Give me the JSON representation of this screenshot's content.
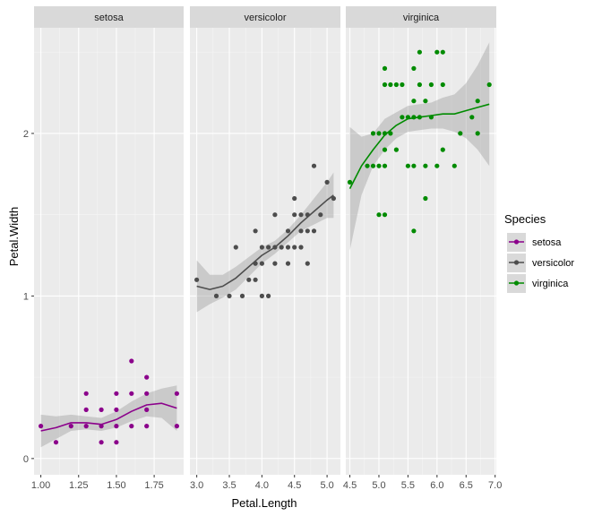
{
  "chart_data": {
    "type": "scatter",
    "facet_variable": "Species",
    "xlabel": "Petal.Length",
    "ylabel": "Petal.Width",
    "ylim": [
      -0.1,
      2.65
    ],
    "yticks": [
      0,
      1,
      2
    ],
    "legend": {
      "title": "Species",
      "placement": "right"
    },
    "grid": true,
    "panels": [
      {
        "name": "setosa",
        "color": "#8B008B",
        "xlim": [
          0.955,
          1.945
        ],
        "xticks": [
          1.0,
          1.25,
          1.5,
          1.75
        ],
        "xtick_labels": [
          "1.00",
          "1.25",
          "1.50",
          "1.75"
        ],
        "points": [
          [
            1.0,
            0.2
          ],
          [
            1.1,
            0.1
          ],
          [
            1.2,
            0.2
          ],
          [
            1.3,
            0.2
          ],
          [
            1.3,
            0.3
          ],
          [
            1.3,
            0.4
          ],
          [
            1.4,
            0.1
          ],
          [
            1.4,
            0.2
          ],
          [
            1.4,
            0.3
          ],
          [
            1.5,
            0.1
          ],
          [
            1.5,
            0.2
          ],
          [
            1.5,
            0.3
          ],
          [
            1.5,
            0.4
          ],
          [
            1.6,
            0.2
          ],
          [
            1.6,
            0.4
          ],
          [
            1.6,
            0.6
          ],
          [
            1.7,
            0.2
          ],
          [
            1.7,
            0.3
          ],
          [
            1.7,
            0.4
          ],
          [
            1.7,
            0.5
          ],
          [
            1.9,
            0.2
          ],
          [
            1.9,
            0.4
          ]
        ],
        "smooth": [
          [
            1.0,
            0.17
          ],
          [
            1.1,
            0.19
          ],
          [
            1.2,
            0.22
          ],
          [
            1.3,
            0.22
          ],
          [
            1.4,
            0.21
          ],
          [
            1.5,
            0.24
          ],
          [
            1.6,
            0.29
          ],
          [
            1.7,
            0.33
          ],
          [
            1.8,
            0.34
          ],
          [
            1.9,
            0.31
          ]
        ],
        "band": [
          [
            1.0,
            0.07,
            0.27
          ],
          [
            1.1,
            0.12,
            0.26
          ],
          [
            1.2,
            0.17,
            0.27
          ],
          [
            1.3,
            0.18,
            0.26
          ],
          [
            1.4,
            0.17,
            0.25
          ],
          [
            1.5,
            0.19,
            0.29
          ],
          [
            1.6,
            0.23,
            0.35
          ],
          [
            1.7,
            0.26,
            0.4
          ],
          [
            1.8,
            0.25,
            0.43
          ],
          [
            1.9,
            0.17,
            0.45
          ]
        ]
      },
      {
        "name": "versicolor",
        "color": "#4D4D4D",
        "xlim": [
          2.895,
          5.205
        ],
        "xticks": [
          3.0,
          3.5,
          4.0,
          4.5,
          5.0
        ],
        "xtick_labels": [
          "3.0",
          "3.5",
          "4.0",
          "4.5",
          "5.0"
        ],
        "points": [
          [
            3.0,
            1.1
          ],
          [
            3.3,
            1.0
          ],
          [
            3.5,
            1.0
          ],
          [
            3.6,
            1.3
          ],
          [
            3.7,
            1.0
          ],
          [
            3.8,
            1.1
          ],
          [
            3.9,
            1.1
          ],
          [
            3.9,
            1.2
          ],
          [
            3.9,
            1.4
          ],
          [
            4.0,
            1.0
          ],
          [
            4.0,
            1.2
          ],
          [
            4.0,
            1.3
          ],
          [
            4.1,
            1.0
          ],
          [
            4.1,
            1.3
          ],
          [
            4.2,
            1.2
          ],
          [
            4.2,
            1.3
          ],
          [
            4.2,
            1.5
          ],
          [
            4.3,
            1.3
          ],
          [
            4.4,
            1.2
          ],
          [
            4.4,
            1.3
          ],
          [
            4.4,
            1.4
          ],
          [
            4.5,
            1.3
          ],
          [
            4.5,
            1.5
          ],
          [
            4.5,
            1.6
          ],
          [
            4.6,
            1.3
          ],
          [
            4.6,
            1.4
          ],
          [
            4.6,
            1.5
          ],
          [
            4.7,
            1.2
          ],
          [
            4.7,
            1.4
          ],
          [
            4.7,
            1.5
          ],
          [
            4.8,
            1.4
          ],
          [
            4.8,
            1.8
          ],
          [
            4.9,
            1.5
          ],
          [
            5.0,
            1.7
          ],
          [
            5.1,
            1.6
          ]
        ],
        "smooth": [
          [
            3.0,
            1.06
          ],
          [
            3.2,
            1.04
          ],
          [
            3.4,
            1.06
          ],
          [
            3.6,
            1.11
          ],
          [
            3.8,
            1.18
          ],
          [
            4.0,
            1.25
          ],
          [
            4.2,
            1.3
          ],
          [
            4.4,
            1.37
          ],
          [
            4.6,
            1.45
          ],
          [
            4.8,
            1.52
          ],
          [
            5.0,
            1.59
          ],
          [
            5.1,
            1.62
          ]
        ],
        "band": [
          [
            3.0,
            0.9,
            1.22
          ],
          [
            3.2,
            0.95,
            1.13
          ],
          [
            3.4,
            0.99,
            1.13
          ],
          [
            3.6,
            1.04,
            1.18
          ],
          [
            3.8,
            1.12,
            1.24
          ],
          [
            4.0,
            1.2,
            1.3
          ],
          [
            4.2,
            1.26,
            1.34
          ],
          [
            4.4,
            1.33,
            1.41
          ],
          [
            4.6,
            1.4,
            1.5
          ],
          [
            4.8,
            1.44,
            1.6
          ],
          [
            5.0,
            1.48,
            1.7
          ],
          [
            5.1,
            1.48,
            1.76
          ]
        ]
      },
      {
        "name": "virginica",
        "color": "#008B00",
        "xlim": [
          4.43,
          7.02
        ],
        "xticks": [
          4.5,
          5.0,
          5.5,
          6.0,
          6.5,
          7.0
        ],
        "xtick_labels": [
          "4.5",
          "5.0",
          "5.5",
          "6.0",
          "6.5",
          "7.0"
        ],
        "points": [
          [
            4.5,
            1.7
          ],
          [
            4.8,
            1.8
          ],
          [
            4.9,
            1.8
          ],
          [
            4.9,
            2.0
          ],
          [
            5.0,
            1.5
          ],
          [
            5.0,
            1.8
          ],
          [
            5.0,
            2.0
          ],
          [
            5.1,
            1.5
          ],
          [
            5.1,
            1.8
          ],
          [
            5.1,
            1.9
          ],
          [
            5.1,
            2.0
          ],
          [
            5.1,
            2.3
          ],
          [
            5.1,
            2.4
          ],
          [
            5.2,
            2.0
          ],
          [
            5.2,
            2.3
          ],
          [
            5.3,
            1.9
          ],
          [
            5.3,
            2.3
          ],
          [
            5.4,
            2.1
          ],
          [
            5.4,
            2.3
          ],
          [
            5.5,
            1.8
          ],
          [
            5.5,
            2.1
          ],
          [
            5.6,
            1.4
          ],
          [
            5.6,
            1.8
          ],
          [
            5.6,
            2.1
          ],
          [
            5.6,
            2.2
          ],
          [
            5.6,
            2.4
          ],
          [
            5.7,
            2.1
          ],
          [
            5.7,
            2.3
          ],
          [
            5.7,
            2.5
          ],
          [
            5.8,
            1.6
          ],
          [
            5.8,
            1.8
          ],
          [
            5.8,
            2.2
          ],
          [
            5.9,
            2.1
          ],
          [
            5.9,
            2.3
          ],
          [
            6.0,
            1.8
          ],
          [
            6.0,
            2.5
          ],
          [
            6.1,
            1.9
          ],
          [
            6.1,
            2.3
          ],
          [
            6.1,
            2.5
          ],
          [
            6.3,
            1.8
          ],
          [
            6.4,
            2.0
          ],
          [
            6.6,
            2.1
          ],
          [
            6.7,
            2.0
          ],
          [
            6.7,
            2.2
          ],
          [
            6.9,
            2.3
          ]
        ],
        "smooth": [
          [
            4.5,
            1.66
          ],
          [
            4.7,
            1.8
          ],
          [
            4.9,
            1.9
          ],
          [
            5.1,
            1.99
          ],
          [
            5.3,
            2.05
          ],
          [
            5.5,
            2.09
          ],
          [
            5.7,
            2.1
          ],
          [
            5.9,
            2.11
          ],
          [
            6.1,
            2.12
          ],
          [
            6.3,
            2.12
          ],
          [
            6.5,
            2.14
          ],
          [
            6.7,
            2.16
          ],
          [
            6.9,
            2.18
          ]
        ],
        "band": [
          [
            4.5,
            1.28,
            2.04
          ],
          [
            4.7,
            1.62,
            1.98
          ],
          [
            4.9,
            1.8,
            2.0
          ],
          [
            5.1,
            1.9,
            2.09
          ],
          [
            5.3,
            1.97,
            2.13
          ],
          [
            5.5,
            2.01,
            2.17
          ],
          [
            5.7,
            2.02,
            2.18
          ],
          [
            5.9,
            2.03,
            2.19
          ],
          [
            6.1,
            2.03,
            2.22
          ],
          [
            6.3,
            2.01,
            2.24
          ],
          [
            6.5,
            1.97,
            2.31
          ],
          [
            6.7,
            1.9,
            2.42
          ],
          [
            6.9,
            1.8,
            2.56
          ]
        ]
      }
    ]
  }
}
